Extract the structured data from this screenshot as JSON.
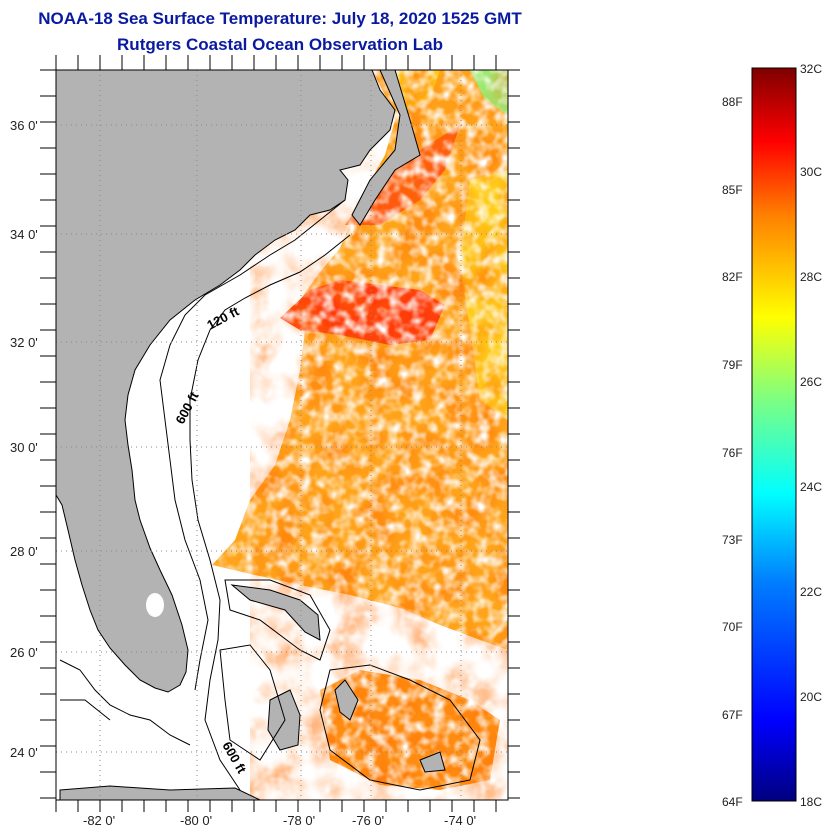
{
  "title": "NOAA-18 Sea Surface Temperature:  July 18, 2020 1525 GMT",
  "subtitle": "Rutgers Coastal Ocean Observation Lab",
  "map": {
    "lat_labels": [
      "36 0'",
      "34 0'",
      "32 0'",
      "30 0'",
      "28 0'",
      "26 0'",
      "24 0'"
    ],
    "lon_labels": [
      "-82 0'",
      "-80 0'",
      "-78 0'",
      "-76 0'",
      "-74 0'"
    ],
    "contour_labels": [
      "120 ft",
      "600 ft",
      "600 ft"
    ],
    "colors": {
      "land": "#b3b3b3",
      "no_data": "#ffffff",
      "grid": "#888888"
    }
  },
  "colorbar": {
    "fahrenheit": [
      "88F",
      "85F",
      "82F",
      "79F",
      "76F",
      "73F",
      "70F",
      "67F",
      "64F"
    ],
    "celsius": [
      "32C",
      "30C",
      "28C",
      "26C",
      "24C",
      "22C",
      "20C",
      "18C"
    ],
    "min_c": 18,
    "max_c": 32,
    "palette": [
      "#00007f",
      "#0000ff",
      "#007fff",
      "#00ffff",
      "#7fff7f",
      "#ffff00",
      "#ff7f00",
      "#ff0000",
      "#7f0000"
    ]
  }
}
